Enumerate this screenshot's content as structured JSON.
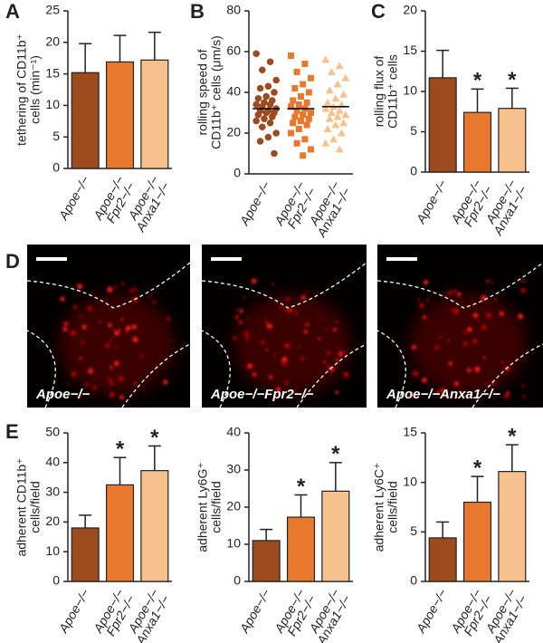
{
  "chart_data": [
    {
      "type": "bar",
      "panel": "A",
      "ylabel": [
        "tethering of CD11b⁺",
        "cells (min⁻¹)"
      ],
      "categories": [
        [
          "Apoe−/−"
        ],
        [
          "Apoe−/−",
          "Fpr2−/−"
        ],
        [
          "Apoe−/−",
          "Anxa1−/−"
        ]
      ],
      "values": [
        15.2,
        16.9,
        17.2
      ],
      "errors": [
        4.6,
        4.2,
        4.4
      ],
      "colors": [
        "#9c4a1e",
        "#e8782e",
        "#f7c18e"
      ],
      "ylim": [
        0,
        25
      ],
      "yticks": [
        0,
        5,
        10,
        15,
        20,
        25
      ]
    },
    {
      "type": "scatter",
      "panel": "B",
      "ylabel": [
        "rolling speed of",
        "CD11b⁺ cells (μm/s)"
      ],
      "categories": [
        [
          "Apoe−/−"
        ],
        [
          "Apoe−/−",
          "Fpr2−/−"
        ],
        [
          "Apoe−/−",
          "Anxa1−/−"
        ]
      ],
      "series": [
        {
          "color": "#9c4a1e",
          "marker": "circle",
          "values": [
            59,
            55,
            51,
            46,
            43,
            42,
            40,
            38,
            37,
            36,
            35,
            34,
            34,
            33,
            32,
            31,
            31,
            30,
            30,
            29,
            28,
            27,
            26,
            25,
            23,
            20,
            18,
            16,
            10
          ]
        },
        {
          "color": "#e8782e",
          "marker": "square",
          "values": [
            58,
            54,
            50,
            47,
            44,
            42,
            40,
            38,
            36,
            35,
            34,
            33,
            32,
            31,
            30,
            29,
            28,
            27,
            26,
            25,
            24,
            22,
            20,
            17,
            15,
            12,
            9
          ]
        },
        {
          "color": "#f7c18e",
          "marker": "triangle",
          "values": [
            56,
            53,
            50,
            47,
            44,
            41,
            39,
            37,
            35,
            34,
            33,
            32,
            31,
            30,
            29,
            28,
            27,
            25,
            24,
            22,
            20,
            17,
            15,
            12
          ]
        }
      ],
      "means": [
        32,
        32,
        33
      ],
      "ylim": [
        0,
        80
      ],
      "yticks": [
        0,
        20,
        40,
        60,
        80
      ]
    },
    {
      "type": "bar",
      "panel": "C",
      "ylabel": [
        "rolling flux of",
        "CD11b⁺ cells"
      ],
      "categories": [
        [
          "Apoe−/−"
        ],
        [
          "Apoe−/−",
          "Fpr2−/−"
        ],
        [
          "Apoe−/−",
          "Anxa1−/−"
        ]
      ],
      "values": [
        11.7,
        7.4,
        7.9
      ],
      "errors": [
        3.4,
        2.9,
        2.5
      ],
      "significance": [
        null,
        "*",
        "*"
      ],
      "colors": [
        "#9c4a1e",
        "#e8782e",
        "#f7c18e"
      ],
      "ylim": [
        0,
        20
      ],
      "yticks": [
        0,
        5,
        10,
        15,
        20
      ]
    },
    {
      "type": "bar",
      "panel": "E",
      "ylabel": [
        "adherent CD11b⁺",
        "cells/field"
      ],
      "categories": [
        [
          "Apoe−/−"
        ],
        [
          "Apoe−/−",
          "Fpr2−/−"
        ],
        [
          "Apoe−/−",
          "Anxa1−/−"
        ]
      ],
      "values": [
        18,
        32.5,
        37.3
      ],
      "errors": [
        4.3,
        9.2,
        8.3
      ],
      "significance": [
        null,
        "*",
        "*"
      ],
      "colors": [
        "#9c4a1e",
        "#e8782e",
        "#f7c18e"
      ],
      "ylim": [
        0,
        50
      ],
      "yticks": [
        0,
        10,
        20,
        30,
        40,
        50
      ]
    },
    {
      "type": "bar",
      "ylabel": [
        "adherent Ly6G⁺",
        "cells/field"
      ],
      "categories": [
        [
          "Apoe−/−"
        ],
        [
          "Apoe−/−",
          "Fpr2−/−"
        ],
        [
          "Apoe−/−",
          "Anxa1−/−"
        ]
      ],
      "values": [
        11,
        17.3,
        24.3
      ],
      "errors": [
        3,
        6,
        7.7
      ],
      "significance": [
        null,
        "*",
        "*"
      ],
      "colors": [
        "#9c4a1e",
        "#e8782e",
        "#f7c18e"
      ],
      "ylim": [
        0,
        40
      ],
      "yticks": [
        0,
        10,
        20,
        30,
        40
      ]
    },
    {
      "type": "bar",
      "ylabel": [
        "adherent Ly6C⁺",
        "cells/field"
      ],
      "categories": [
        [
          "Apoe−/−"
        ],
        [
          "Apoe−/−",
          "Fpr2−/−"
        ],
        [
          "Apoe−/−",
          "Anxa1−/−"
        ]
      ],
      "values": [
        4.4,
        8,
        11.1
      ],
      "errors": [
        1.6,
        2.6,
        2.7
      ],
      "significance": [
        null,
        "*",
        "*"
      ],
      "colors": [
        "#9c4a1e",
        "#e8782e",
        "#f7c18e"
      ],
      "ylim": [
        0,
        15
      ],
      "yticks": [
        0,
        5,
        10,
        15
      ]
    }
  ],
  "images": {
    "panel": "D",
    "labels": [
      "Apoe−/−",
      "Apoe−/−Fpr2−/−",
      "Apoe−/−Anxa1−/−"
    ]
  }
}
